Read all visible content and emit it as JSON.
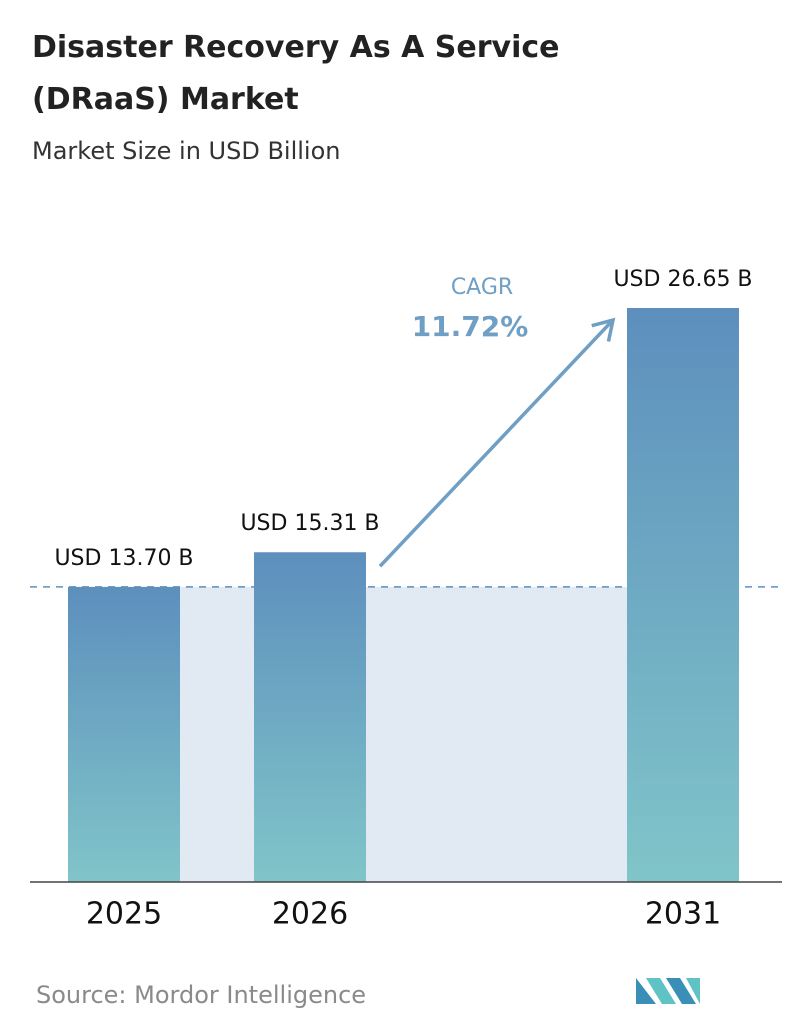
{
  "chart_data": {
    "type": "bar",
    "title": "Disaster Recovery As A Service (DRaaS) Market",
    "subtitle": "Market Size in USD Billion",
    "categories": [
      "2025",
      "2026",
      "2031"
    ],
    "values": [
      13.7,
      15.31,
      26.65
    ],
    "value_labels": [
      "USD 13.70 B",
      "USD 15.31 B",
      "USD 26.65 B"
    ],
    "annotation_label": "CAGR",
    "annotation_value": "11.72%",
    "source": "Source: Mordor Intelligence"
  }
}
